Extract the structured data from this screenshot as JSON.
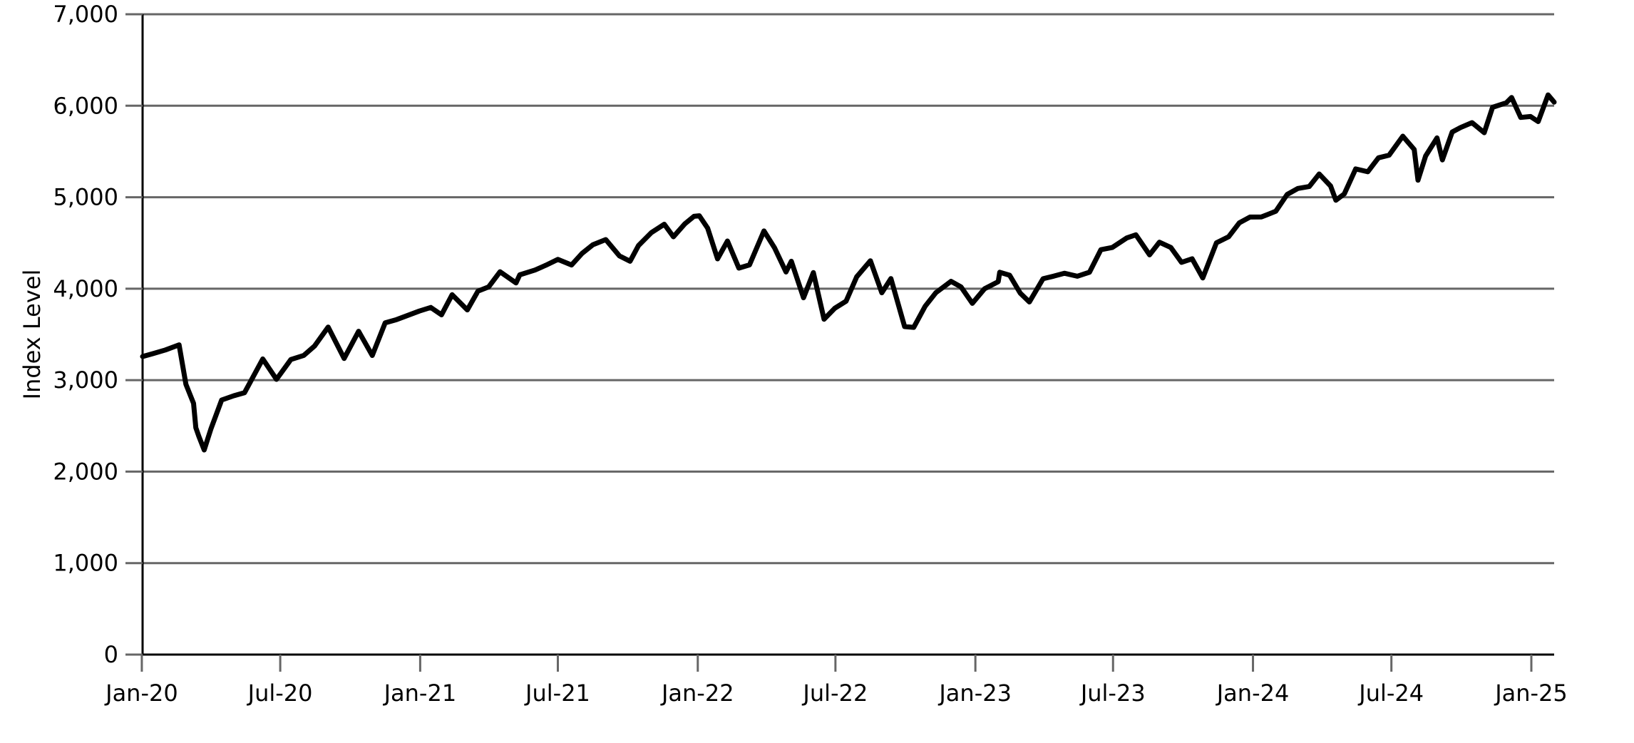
{
  "chart_data": {
    "type": "line",
    "title": "",
    "xlabel": "",
    "ylabel": "Index Level",
    "ylim": [
      0,
      7000
    ],
    "xlim": [
      "2020-01-02",
      "2025-01-31"
    ],
    "y_ticks": [
      0,
      1000,
      2000,
      3000,
      4000,
      5000,
      6000,
      7000
    ],
    "y_tick_labels": [
      "0",
      "1,000",
      "2,000",
      "3,000",
      "4,000",
      "5,000",
      "6,000",
      "7,000"
    ],
    "x_ticks": [
      "2020-01-01",
      "2020-07-01",
      "2021-01-01",
      "2021-07-01",
      "2022-01-01",
      "2022-07-01",
      "2023-01-01",
      "2023-07-01",
      "2024-01-01",
      "2024-07-01",
      "2025-01-01"
    ],
    "x_tick_labels": [
      "Jan-20",
      "Jul-20",
      "Jan-21",
      "Jul-21",
      "Jan-22",
      "Jul-22",
      "Jan-23",
      "Jul-23",
      "Jan-24",
      "Jul-24",
      "Jan-25"
    ],
    "grid": true,
    "legend": "none",
    "colors": {
      "line": "#000000",
      "grid": "#666666"
    },
    "series": [
      {
        "x": [
          "2020-01-02",
          "2020-01-15",
          "2020-02-01",
          "2020-02-19",
          "2020-02-28",
          "2020-03-09",
          "2020-03-12",
          "2020-03-16",
          "2020-03-23",
          "2020-04-01",
          "2020-04-15",
          "2020-05-01",
          "2020-05-15",
          "2020-06-08",
          "2020-06-26",
          "2020-07-15",
          "2020-08-01",
          "2020-08-15",
          "2020-09-02",
          "2020-09-23",
          "2020-10-12",
          "2020-10-30",
          "2020-11-16",
          "2020-12-01",
          "2020-12-31",
          "2021-01-15",
          "2021-01-29",
          "2021-02-12",
          "2021-03-04",
          "2021-03-18",
          "2021-04-01",
          "2021-04-16",
          "2021-05-07",
          "2021-05-12",
          "2021-06-01",
          "2021-06-15",
          "2021-07-01",
          "2021-07-19",
          "2021-08-02",
          "2021-08-16",
          "2021-09-02",
          "2021-09-20",
          "2021-10-04",
          "2021-10-15",
          "2021-11-01",
          "2021-11-18",
          "2021-11-30",
          "2021-12-15",
          "2021-12-27",
          "2022-01-03",
          "2022-01-14",
          "2022-01-27",
          "2022-02-09",
          "2022-02-24",
          "2022-03-10",
          "2022-03-29",
          "2022-04-12",
          "2022-04-27",
          "2022-05-04",
          "2022-05-20",
          "2022-06-02",
          "2022-06-16",
          "2022-06-30",
          "2022-07-15",
          "2022-07-29",
          "2022-08-16",
          "2022-08-31",
          "2022-09-12",
          "2022-09-30",
          "2022-10-12",
          "2022-10-27",
          "2022-11-10",
          "2022-11-30",
          "2022-12-13",
          "2022-12-28",
          "2023-01-13",
          "2023-01-31",
          "2023-02-02",
          "2023-02-15",
          "2023-03-01",
          "2023-03-13",
          "2023-03-31",
          "2023-04-14",
          "2023-04-28",
          "2023-05-15",
          "2023-05-31",
          "2023-06-15",
          "2023-06-30",
          "2023-07-19",
          "2023-07-31",
          "2023-08-18",
          "2023-08-31",
          "2023-09-15",
          "2023-09-29",
          "2023-10-13",
          "2023-10-27",
          "2023-11-14",
          "2023-11-30",
          "2023-12-14",
          "2023-12-28",
          "2024-01-12",
          "2024-01-31",
          "2024-02-15",
          "2024-02-29",
          "2024-03-15",
          "2024-03-28",
          "2024-04-12",
          "2024-04-19",
          "2024-04-30",
          "2024-05-15",
          "2024-05-31",
          "2024-06-14",
          "2024-06-28",
          "2024-07-16",
          "2024-07-31",
          "2024-08-05",
          "2024-08-15",
          "2024-08-30",
          "2024-09-06",
          "2024-09-19",
          "2024-09-30",
          "2024-10-15",
          "2024-10-31",
          "2024-11-11",
          "2024-11-29",
          "2024-12-06",
          "2024-12-18",
          "2024-12-31",
          "2025-01-10",
          "2025-01-23",
          "2025-01-31"
        ],
        "values": [
          3258,
          3289,
          3330,
          3386,
          2954,
          2746,
          2480,
          2386,
          2237,
          2470,
          2783,
          2830,
          2863,
          3232,
          3009,
          3226,
          3271,
          3372,
          3580,
          3237,
          3534,
          3270,
          3627,
          3662,
          3756,
          3795,
          3714,
          3934,
          3768,
          3974,
          4019,
          4185,
          4063,
          4152,
          4204,
          4255,
          4320,
          4259,
          4387,
          4480,
          4537,
          4358,
          4300,
          4471,
          4613,
          4704,
          4567,
          4709,
          4791,
          4797,
          4662,
          4326,
          4521,
          4225,
          4260,
          4631,
          4446,
          4183,
          4300,
          3901,
          4176,
          3666,
          3785,
          3863,
          4130,
          4305,
          3955,
          4110,
          3586,
          3577,
          3808,
          3956,
          4080,
          4020,
          3840,
          3999,
          4077,
          4180,
          4147,
          3951,
          3855,
          4109,
          4137,
          4169,
          4136,
          4180,
          4426,
          4450,
          4555,
          4589,
          4370,
          4508,
          4450,
          4288,
          4327,
          4117,
          4502,
          4568,
          4719,
          4783,
          4784,
          4846,
          5030,
          5096,
          5117,
          5254,
          5123,
          4967,
          5036,
          5309,
          5278,
          5431,
          5460,
          5667,
          5522,
          5186,
          5450,
          5648,
          5408,
          5713,
          5762,
          5815,
          5705,
          5983,
          6032,
          6090,
          5872,
          5882,
          5827,
          6118,
          6040
        ]
      }
    ]
  }
}
